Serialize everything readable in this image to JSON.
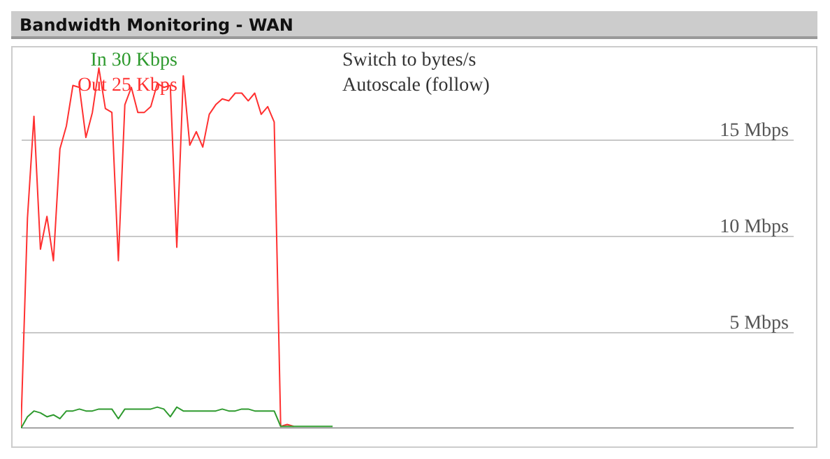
{
  "chart_data": {
    "type": "line",
    "title": "Bandwidth Monitoring - WAN",
    "annotations": [
      "Switch to bytes/s",
      "Autoscale (follow)"
    ],
    "categories": [
      null,
      null,
      null,
      null,
      null,
      null,
      null,
      null,
      null,
      null,
      null,
      null,
      null,
      null,
      null,
      null,
      null,
      null,
      null,
      null,
      null,
      null,
      null,
      null,
      null,
      null,
      null,
      null,
      null,
      null,
      null,
      null,
      null,
      null,
      null,
      null,
      null,
      null,
      null,
      null,
      null,
      null,
      null,
      null,
      null,
      null,
      null,
      null,
      null,
      null,
      null,
      null,
      null,
      null,
      null,
      null,
      null,
      null,
      null,
      null,
      null,
      null,
      null,
      null,
      null,
      null,
      null,
      null,
      null,
      null,
      null,
      null,
      null,
      null,
      null,
      null,
      null,
      null,
      null,
      null,
      null,
      null,
      null,
      null,
      null,
      null,
      null,
      null,
      null,
      null,
      null,
      null,
      null,
      null,
      null,
      null,
      null,
      null,
      null,
      null,
      null,
      null,
      null,
      null,
      null,
      null,
      null,
      null,
      null,
      null,
      null,
      null,
      null,
      null,
      null,
      null,
      null,
      null,
      null,
      null
    ],
    "series": [
      {
        "name": "Out 25 Kbps",
        "color": "#ff3030",
        "values": [
          0,
          10.9,
          16.2,
          9.3,
          11.0,
          8.7,
          14.5,
          15.7,
          17.8,
          17.7,
          15.1,
          16.4,
          18.7,
          16.6,
          16.4,
          8.7,
          16.8,
          17.7,
          16.4,
          16.4,
          16.7,
          17.9,
          17.7,
          17.8,
          9.4,
          18.3,
          14.7,
          15.4,
          14.6,
          16.3,
          16.8,
          17.1,
          17.0,
          17.4,
          17.4,
          17.0,
          17.4,
          16.3,
          16.7,
          15.9,
          0.1,
          0.2,
          0.1,
          null,
          null,
          null,
          null,
          null,
          null,
          null,
          null,
          null,
          null,
          null,
          null,
          null,
          null,
          null,
          null,
          null,
          null,
          null,
          null,
          null,
          null,
          null,
          null,
          null,
          null,
          null,
          null,
          null,
          null,
          null,
          null,
          null,
          null,
          null,
          null,
          null,
          null,
          null,
          null,
          null,
          null,
          null,
          null,
          null,
          null,
          null,
          null,
          null,
          null,
          null,
          null,
          null,
          null,
          null,
          null,
          null,
          null,
          null,
          null,
          null,
          null,
          null,
          null,
          null,
          null,
          null,
          null,
          null,
          null,
          null,
          null,
          null,
          null,
          null,
          null,
          null
        ]
      },
      {
        "name": "In 30 Kbps",
        "color": "#2e9a2e",
        "values": [
          0,
          0.6,
          0.9,
          0.8,
          0.6,
          0.7,
          0.5,
          0.9,
          0.9,
          1.0,
          0.9,
          0.9,
          1.0,
          1.0,
          1.0,
          0.5,
          1.0,
          1.0,
          1.0,
          1.0,
          1.0,
          1.1,
          1.0,
          0.6,
          1.1,
          0.9,
          0.9,
          0.9,
          0.9,
          0.9,
          0.9,
          1.0,
          0.9,
          0.9,
          1.0,
          1.0,
          0.9,
          0.9,
          0.9,
          0.9,
          0.1,
          0.1,
          0.1,
          0.1,
          0.1,
          0.1,
          0.1,
          0.1,
          0.1,
          null,
          null,
          null,
          null,
          null,
          null,
          null,
          null,
          null,
          null,
          null,
          null,
          null,
          null,
          null,
          null,
          null,
          null,
          null,
          null,
          null,
          null,
          null,
          null,
          null,
          null,
          null,
          null,
          null,
          null,
          null,
          null,
          null,
          null,
          null,
          null,
          null,
          null,
          null,
          null,
          null,
          null,
          null,
          null,
          null,
          null,
          null,
          null,
          null,
          null,
          null,
          null,
          null,
          null,
          null,
          null,
          null,
          null,
          null,
          null,
          null,
          null,
          null,
          null,
          null,
          null,
          null,
          null,
          null,
          null,
          null
        ]
      }
    ],
    "ylim": [
      0,
      19.7
    ],
    "yticks": [
      {
        "value": 5,
        "label": "5 Mbps"
      },
      {
        "value": 10,
        "label": "10 Mbps"
      },
      {
        "value": 15,
        "label": "15 Mbps"
      }
    ],
    "grid": "y",
    "legend": "top left",
    "tick_labels": "y"
  }
}
